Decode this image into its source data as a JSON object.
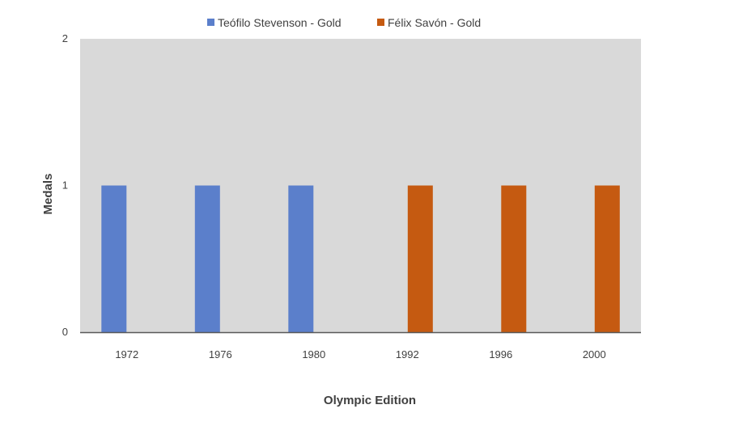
{
  "chart_data": {
    "type": "bar",
    "categories": [
      "1972",
      "1976",
      "1980",
      "1992",
      "1996",
      "2000"
    ],
    "series": [
      {
        "name": "Teófilo Stevenson - Gold",
        "color": "#5B7FCB",
        "values": [
          1,
          1,
          1,
          0,
          0,
          0
        ]
      },
      {
        "name": "Félix Savón - Gold",
        "color": "#C55A11",
        "values": [
          0,
          0,
          0,
          1,
          1,
          1
        ]
      }
    ],
    "title": "",
    "xlabel": "Olympic Edition",
    "ylabel": "Medals",
    "ylim": [
      0,
      2
    ],
    "yticks": [
      "0",
      "1",
      "2"
    ],
    "grid": false,
    "legend_position": "top",
    "plot_background": "#D9D9D9",
    "axis_color": "#595959"
  }
}
